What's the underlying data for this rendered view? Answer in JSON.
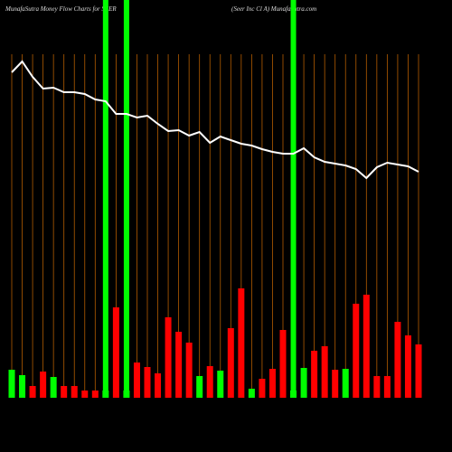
{
  "chart_data": {
    "type": "bar",
    "title": "MunafaSutra  Money Flow  Charts for SEER",
    "subtitle": "(Seer Inc Cl A) MunafaSutra.com",
    "categories": [
      null,
      null,
      null,
      null,
      null,
      null,
      null,
      null,
      null,
      null,
      null,
      null,
      null,
      null,
      null,
      null,
      null,
      null,
      null,
      null,
      null,
      null,
      null,
      null,
      null,
      null,
      null,
      null,
      null,
      null,
      null,
      null,
      null,
      null,
      null,
      null,
      null,
      null,
      null,
      null
    ],
    "series": [
      {
        "type": "bar",
        "values": [
          31,
          25,
          13,
          29,
          23,
          13,
          13,
          8,
          8,
          8,
          100,
          8,
          39,
          34,
          27,
          89,
          73,
          61,
          24,
          35,
          30,
          77,
          121,
          10,
          21,
          32,
          75,
          8,
          33,
          52,
          57,
          31,
          32,
          104,
          114,
          24,
          24,
          84,
          69,
          59
        ],
        "colors": [
          "#00ff00",
          "#00ff00",
          "#ff0000",
          "#ff0000",
          "#00ff00",
          "#ff0000",
          "#ff0000",
          "#ff0000",
          "#ff0000",
          "#00ff00",
          "#ff0000",
          "#00ff00",
          "#ff0000",
          "#ff0000",
          "#ff0000",
          "#ff0000",
          "#ff0000",
          "#ff0000",
          "#00ff00",
          "#ff0000",
          "#00ff00",
          "#ff0000",
          "#ff0000",
          "#00ff00",
          "#ff0000",
          "#ff0000",
          "#ff0000",
          "#00ff00",
          "#00ff00",
          "#ff0000",
          "#ff0000",
          "#ff0000",
          "#00ff00",
          "#ff0000",
          "#ff0000",
          "#ff0000",
          "#ff0000",
          "#ff0000",
          "#ff0000",
          "#ff0000"
        ]
      },
      {
        "type": "line",
        "color": "#ffffff",
        "values": [
          360,
          372,
          355,
          342,
          343,
          338,
          338,
          336,
          330,
          328,
          314,
          314,
          310,
          312,
          303,
          295,
          296,
          290,
          294,
          282,
          289,
          285,
          281,
          279,
          275,
          272,
          270,
          270,
          276,
          266,
          261,
          259,
          257,
          253,
          243,
          255,
          260,
          258,
          256,
          250
        ]
      }
    ],
    "highlight": [
      9,
      11,
      27
    ],
    "highlight_color": "#00ff00",
    "grid_color": "#b35c00",
    "ylim": [
      0,
      440
    ]
  }
}
